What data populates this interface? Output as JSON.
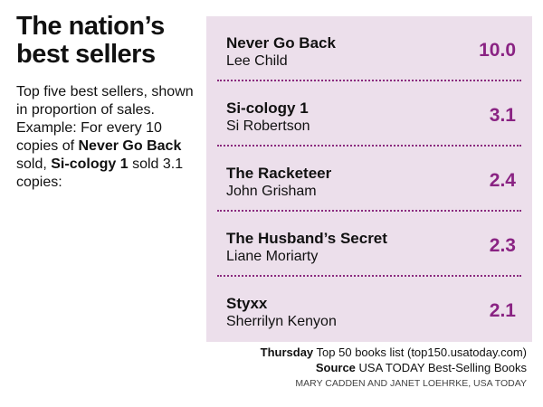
{
  "header": {
    "title": "The nation’s best sellers"
  },
  "intro": {
    "parts": [
      "Top five best sellers, shown in proportion of sales. Example: For every 10 copies of",
      "Never Go Back",
      "sold,",
      "Si-cology 1",
      "sold 3.1 copies:"
    ]
  },
  "books": [
    {
      "title": "Never Go Back",
      "author": "Lee Child",
      "value": "10.0"
    },
    {
      "title": "Si-cology 1",
      "author": "Si Robertson",
      "value": "3.1"
    },
    {
      "title": "The Racketeer",
      "author": "John Grisham",
      "value": "2.4"
    },
    {
      "title": "The Husband’s Secret",
      "author": "Liane Moriarty",
      "value": "2.3"
    },
    {
      "title": "Styxx",
      "author": "Sherrilyn Kenyon",
      "value": "2.1"
    }
  ],
  "footer": {
    "line1": {
      "label": "Thursday",
      "text": "Top 50 books list (top150.usatoday.com)"
    },
    "line2": {
      "label": "Source",
      "text": "USA TODAY Best-Selling Books"
    },
    "credit": "MARY CADDEN AND JANET LOEHRKE, USA TODAY"
  }
}
